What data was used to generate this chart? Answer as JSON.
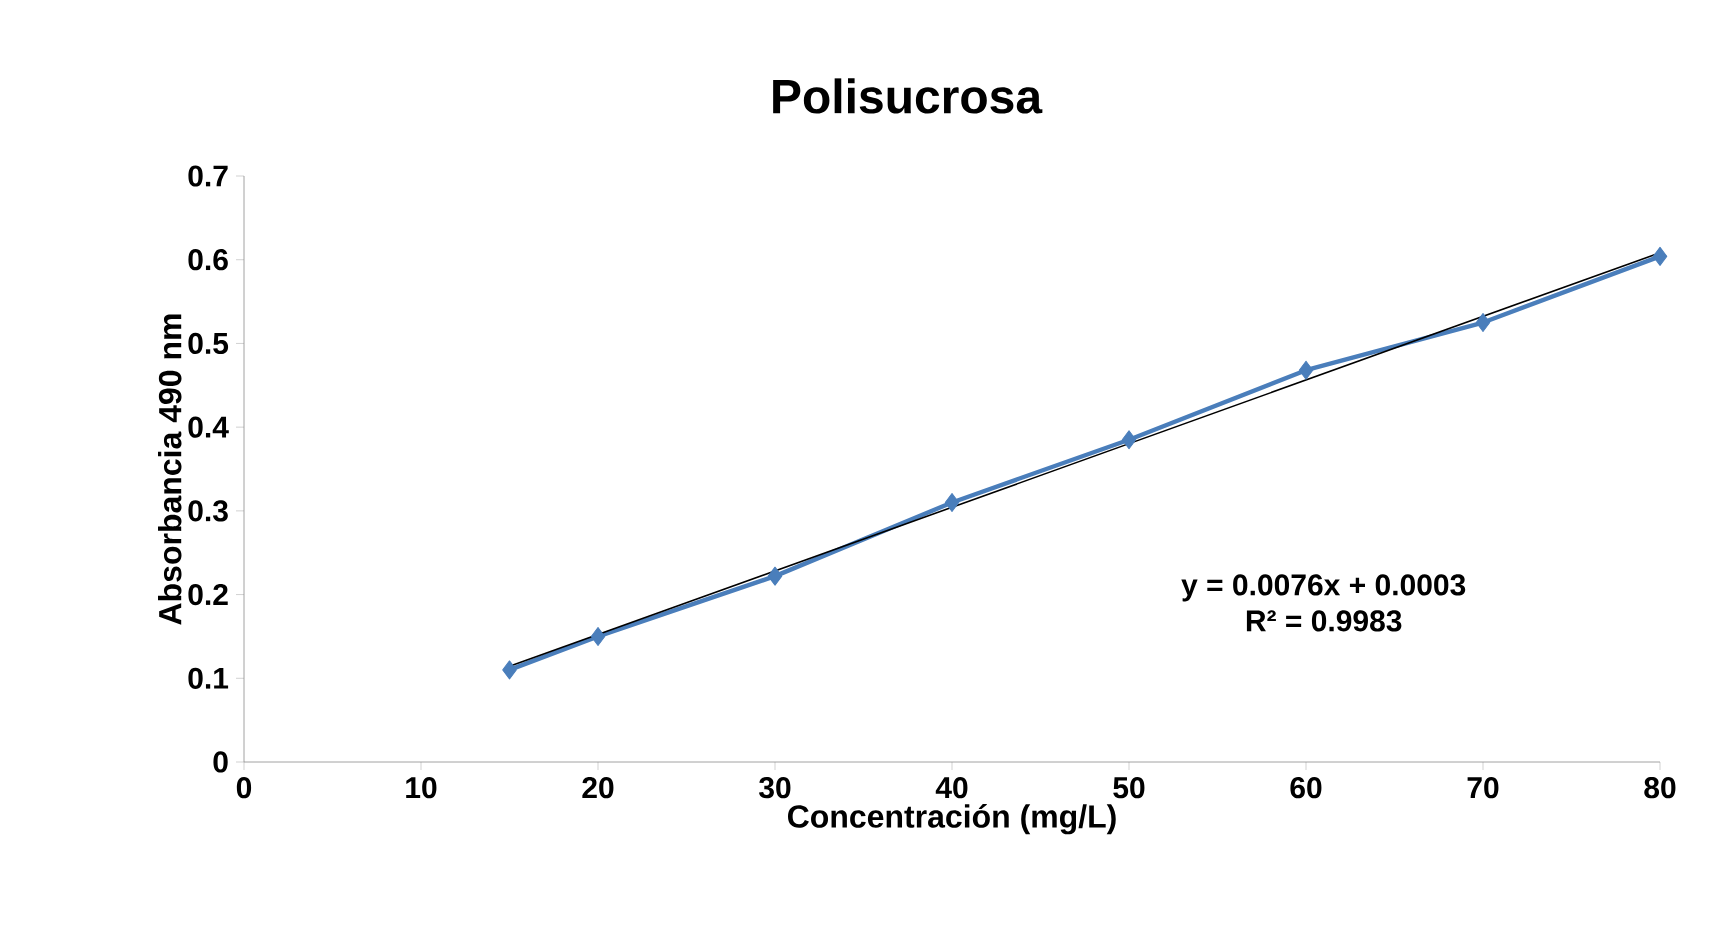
{
  "chart_data": {
    "type": "line",
    "title": "Polisucrosa",
    "xlabel": "Concentración (mg/L)",
    "ylabel": "Absorbancia 490 nm",
    "xlim": [
      0,
      80
    ],
    "xticks": [
      0,
      10,
      20,
      30,
      40,
      50,
      60,
      70,
      80
    ],
    "ylim": [
      0,
      0.7
    ],
    "yticks": [
      0,
      0.1,
      0.2,
      0.3,
      0.4,
      0.5,
      0.6,
      0.7
    ],
    "series": [
      {
        "color": "#4a7ebb",
        "marker": "diamond",
        "x": [
          15,
          20,
          30,
          40,
          50,
          60,
          70,
          80
        ],
        "values": [
          0.11,
          0.15,
          0.222,
          0.31,
          0.385,
          0.468,
          0.525,
          0.604
        ]
      },
      {
        "type": "line",
        "color": "#000000",
        "marker": "none",
        "x": [
          15,
          80
        ],
        "values": [
          0.1143,
          0.6083
        ]
      }
    ],
    "annotations": [
      "y = 0.0076x  + 0.0003",
      "R² = 0.9983"
    ]
  }
}
